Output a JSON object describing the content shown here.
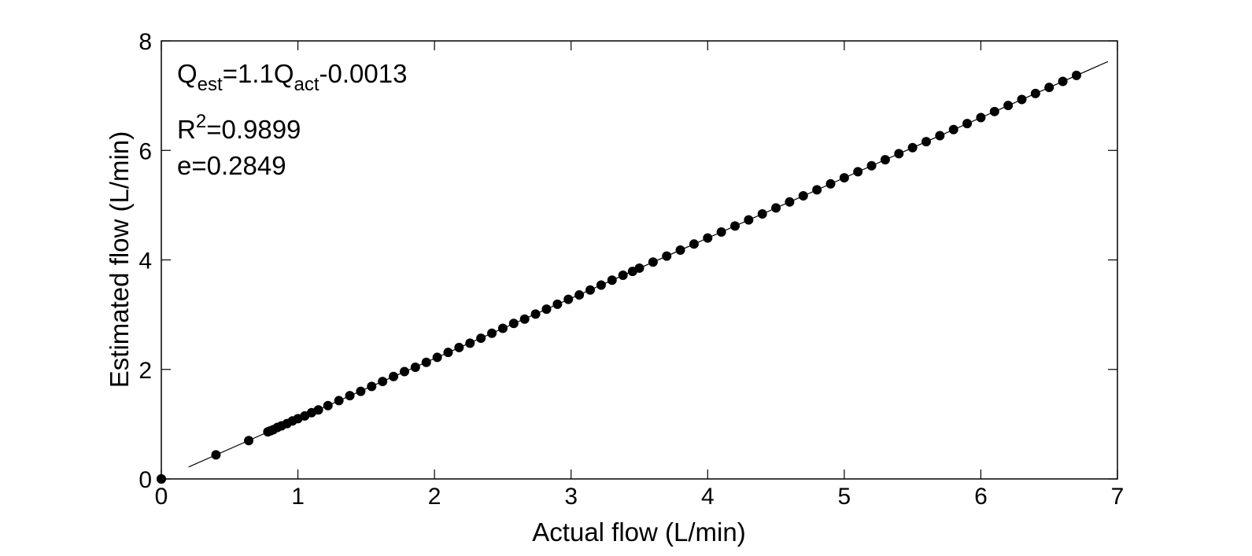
{
  "chart_data": {
    "type": "scatter",
    "title": "",
    "xlabel": "Actual flow (L/min)",
    "ylabel": "Estimated flow (L/min)",
    "xlim": [
      0,
      7
    ],
    "ylim": [
      0,
      8
    ],
    "xticks": [
      "0",
      "1",
      "2",
      "3",
      "4",
      "5",
      "6",
      "7"
    ],
    "yticks": [
      "0",
      "2",
      "4",
      "6",
      "8"
    ],
    "grid": false,
    "legend": "none",
    "marker_color": "#000000",
    "annotations": {
      "equation": {
        "lhs_main": "Q",
        "lhs_sub": "est",
        "mid": "=1.1Q",
        "rhs_sub": "act",
        "tail": "-0.0013"
      },
      "r2": {
        "base": "R",
        "sup": "2",
        "value": "=0.9899"
      },
      "error": "e=0.2849"
    },
    "fit_line": {
      "slope": 1.1,
      "intercept": -0.0013,
      "x_range": [
        0.2,
        6.93
      ]
    },
    "series": [
      {
        "x": [
          0.0,
          0.0,
          0.4,
          0.64,
          0.78,
          0.8,
          0.82,
          0.85,
          0.88,
          0.92,
          0.96,
          1.0,
          1.05,
          1.1,
          1.15,
          1.22,
          1.3,
          1.38,
          1.46,
          1.54,
          1.62,
          1.7,
          1.78,
          1.86,
          1.94,
          2.02,
          2.1,
          2.18,
          2.26,
          2.34,
          2.42,
          2.5,
          2.58,
          2.66,
          2.74,
          2.82,
          2.9,
          2.98,
          3.06,
          3.14,
          3.22,
          3.3,
          3.38,
          3.45,
          3.5,
          3.6,
          3.7,
          3.8,
          3.9,
          4.0,
          4.1,
          4.2,
          4.3,
          4.4,
          4.5,
          4.6,
          4.7,
          4.8,
          4.9,
          5.0,
          5.1,
          5.2,
          5.3,
          5.4,
          5.5,
          5.6,
          5.7,
          5.8,
          5.9,
          6.0,
          6.1,
          6.2,
          6.3,
          6.4,
          6.5,
          6.6,
          6.7
        ],
        "y": [
          0.0,
          0.0,
          0.44,
          0.7,
          0.86,
          0.88,
          0.9,
          0.94,
          0.97,
          1.01,
          1.06,
          1.1,
          1.15,
          1.21,
          1.26,
          1.34,
          1.43,
          1.52,
          1.6,
          1.69,
          1.78,
          1.87,
          1.96,
          2.04,
          2.13,
          2.22,
          2.31,
          2.4,
          2.48,
          2.57,
          2.66,
          2.75,
          2.84,
          2.92,
          3.01,
          3.1,
          3.19,
          3.28,
          3.36,
          3.45,
          3.54,
          3.63,
          3.72,
          3.79,
          3.85,
          3.96,
          4.07,
          4.18,
          4.29,
          4.4,
          4.51,
          4.62,
          4.73,
          4.84,
          4.95,
          5.06,
          5.17,
          5.28,
          5.39,
          5.5,
          5.61,
          5.72,
          5.83,
          5.94,
          6.05,
          6.16,
          6.27,
          6.38,
          6.49,
          6.6,
          6.71,
          6.82,
          6.93,
          7.04,
          7.15,
          7.26,
          7.37
        ]
      }
    ]
  }
}
